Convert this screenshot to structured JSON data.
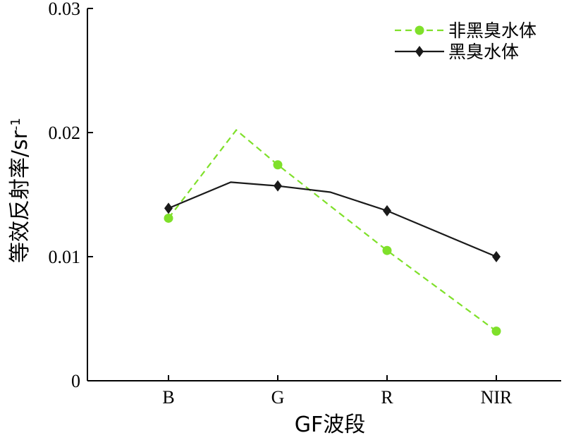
{
  "chart_data": {
    "type": "line",
    "categories": [
      "B",
      "G",
      "R",
      "NIR"
    ],
    "xlabel": "GF波段",
    "ylabel_main": "等效反射率/sr",
    "ylabel_sup": "-1",
    "ylim": [
      0,
      0.03
    ],
    "yticks": [
      "0",
      "0.01",
      "0.02",
      "0.03"
    ],
    "grid": false,
    "legend_position": "top-right",
    "series": [
      {
        "name": "非黑臭水体",
        "color": "#7fe02a",
        "line_style": "dashed",
        "marker": "circle",
        "markers": [
          {
            "x": 1,
            "y": 0.0131
          },
          {
            "x": 2,
            "y": 0.0174
          },
          {
            "x": 3,
            "y": 0.0105
          },
          {
            "x": 4,
            "y": 0.004
          }
        ],
        "line": [
          {
            "x": 1,
            "y": 0.0131
          },
          {
            "x": 1.62,
            "y": 0.0202
          },
          {
            "x": 2,
            "y": 0.0174
          },
          {
            "x": 3,
            "y": 0.0105
          },
          {
            "x": 4,
            "y": 0.004
          }
        ]
      },
      {
        "name": "黑臭水体",
        "color": "#1a1a1a",
        "line_style": "solid",
        "marker": "diamond",
        "markers": [
          {
            "x": 1,
            "y": 0.0139
          },
          {
            "x": 2,
            "y": 0.0157
          },
          {
            "x": 3,
            "y": 0.0137
          },
          {
            "x": 4,
            "y": 0.01
          }
        ],
        "line": [
          {
            "x": 1,
            "y": 0.0139
          },
          {
            "x": 1.57,
            "y": 0.016
          },
          {
            "x": 2,
            "y": 0.0157
          },
          {
            "x": 2.48,
            "y": 0.0152
          },
          {
            "x": 3,
            "y": 0.0137
          },
          {
            "x": 4,
            "y": 0.01
          }
        ]
      }
    ]
  }
}
